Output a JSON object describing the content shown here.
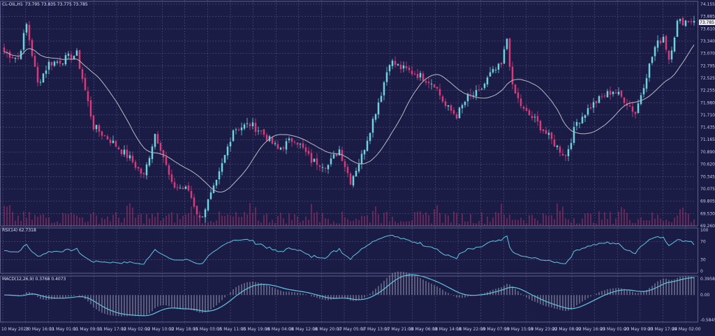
{
  "colors": {
    "background": "#1b1c46",
    "grid": "#5d5f8c",
    "bull": "#6fd3df",
    "bear": "#d83a7a",
    "ma": "#b9b9c4",
    "rsi": "#62c4df",
    "macd_line": "#62c4df",
    "macd_hist": "#b9bac8",
    "volume": "#a8326c",
    "text": "#c9cbe6"
  },
  "header": {
    "symbol_label": "CL-OIL,H1",
    "ohlc_label": "73.795 73.835 73.775 73.785"
  },
  "price_axis": {
    "ticks": [
      "74.155",
      "73.885",
      "73.610",
      "73.340",
      "73.070",
      "72.795",
      "72.525",
      "72.255",
      "71.980",
      "71.710",
      "71.435",
      "71.165",
      "70.890",
      "70.620",
      "70.345",
      "70.075",
      "69.805",
      "69.530",
      "69.260"
    ],
    "current_price": "73.785"
  },
  "rsi_panel": {
    "label": "RSI(14) 62.7318",
    "ticks": [
      "100",
      "70",
      "30",
      "0"
    ]
  },
  "macd_panel": {
    "label": "MACD(12,26,9) 0.3768 0.4073",
    "ticks": [
      "0.3958",
      "0.00",
      "-0.5845"
    ]
  },
  "time_axis": {
    "ticks": [
      "10 May 2023",
      "10 May 16:00",
      "11 May 01:00",
      "11 May 09:00",
      "11 May 17:00",
      "12 May 02:00",
      "12 May 10:00",
      "12 May 18:00",
      "15 May 03:00",
      "15 May 11:00",
      "15 May 19:00",
      "16 May 04:00",
      "16 May 12:00",
      "16 May 20:00",
      "17 May 05:00",
      "17 May 13:00",
      "17 May 21:00",
      "18 May 06:00",
      "18 May 14:00",
      "18 May 22:00",
      "19 May 07:00",
      "19 May 15:00",
      "19 May 23:00",
      "22 May 08:00",
      "22 May 16:00",
      "23 May 01:00",
      "23 May 09:00",
      "23 May 17:00",
      "24 May 02:00"
    ]
  },
  "chart_data": {
    "type": "candlestick",
    "symbol": "CL-OIL",
    "timeframe": "H1",
    "price_range": [
      69.26,
      74.155
    ],
    "close_path_keypoints": [
      {
        "bar": 0,
        "close": 73.1
      },
      {
        "bar": 5,
        "close": 72.95
      },
      {
        "bar": 8,
        "close": 73.7
      },
      {
        "bar": 12,
        "close": 72.4
      },
      {
        "bar": 16,
        "close": 72.85
      },
      {
        "bar": 20,
        "close": 72.9
      },
      {
        "bar": 26,
        "close": 73.05
      },
      {
        "bar": 32,
        "close": 71.45
      },
      {
        "bar": 38,
        "close": 71.15
      },
      {
        "bar": 45,
        "close": 70.75
      },
      {
        "bar": 50,
        "close": 70.35
      },
      {
        "bar": 54,
        "close": 71.3
      },
      {
        "bar": 56,
        "close": 71.0
      },
      {
        "bar": 60,
        "close": 70.15
      },
      {
        "bar": 66,
        "close": 70.05
      },
      {
        "bar": 70,
        "close": 69.4
      },
      {
        "bar": 76,
        "close": 70.2
      },
      {
        "bar": 82,
        "close": 71.4
      },
      {
        "bar": 88,
        "close": 71.5
      },
      {
        "bar": 92,
        "close": 71.35
      },
      {
        "bar": 98,
        "close": 70.95
      },
      {
        "bar": 104,
        "close": 71.2
      },
      {
        "bar": 110,
        "close": 70.7
      },
      {
        "bar": 116,
        "close": 70.6
      },
      {
        "bar": 120,
        "close": 70.95
      },
      {
        "bar": 124,
        "close": 70.25
      },
      {
        "bar": 128,
        "close": 70.8
      },
      {
        "bar": 132,
        "close": 71.6
      },
      {
        "bar": 135,
        "close": 72.2
      },
      {
        "bar": 138,
        "close": 72.9
      },
      {
        "bar": 142,
        "close": 72.75
      },
      {
        "bar": 148,
        "close": 72.6
      },
      {
        "bar": 154,
        "close": 72.4
      },
      {
        "bar": 158,
        "close": 71.9
      },
      {
        "bar": 162,
        "close": 71.7
      },
      {
        "bar": 166,
        "close": 72.1
      },
      {
        "bar": 170,
        "close": 72.2
      },
      {
        "bar": 174,
        "close": 72.6
      },
      {
        "bar": 178,
        "close": 72.8
      },
      {
        "bar": 180,
        "close": 73.4
      },
      {
        "bar": 182,
        "close": 72.3
      },
      {
        "bar": 186,
        "close": 71.8
      },
      {
        "bar": 190,
        "close": 71.6
      },
      {
        "bar": 194,
        "close": 71.3
      },
      {
        "bar": 198,
        "close": 71.0
      },
      {
        "bar": 201,
        "close": 70.8
      },
      {
        "bar": 205,
        "close": 71.55
      },
      {
        "bar": 210,
        "close": 71.9
      },
      {
        "bar": 214,
        "close": 72.1
      },
      {
        "bar": 218,
        "close": 72.25
      },
      {
        "bar": 222,
        "close": 72.05
      },
      {
        "bar": 226,
        "close": 71.75
      },
      {
        "bar": 230,
        "close": 72.6
      },
      {
        "bar": 233,
        "close": 73.2
      },
      {
        "bar": 236,
        "close": 73.45
      },
      {
        "bar": 238,
        "close": 72.95
      },
      {
        "bar": 241,
        "close": 73.75
      },
      {
        "bar": 245,
        "close": 73.8
      },
      {
        "bar": 247,
        "close": 73.785
      }
    ],
    "moving_average": "smoothed close",
    "rsi": {
      "period": 14,
      "last": 62.7318,
      "levels": [
        30,
        70
      ],
      "range": [
        0,
        100
      ]
    },
    "macd": {
      "params": [
        12,
        26,
        9
      ],
      "main": 0.3768,
      "signal": 0.4073,
      "range": [
        -0.5845,
        0.3958
      ]
    }
  }
}
